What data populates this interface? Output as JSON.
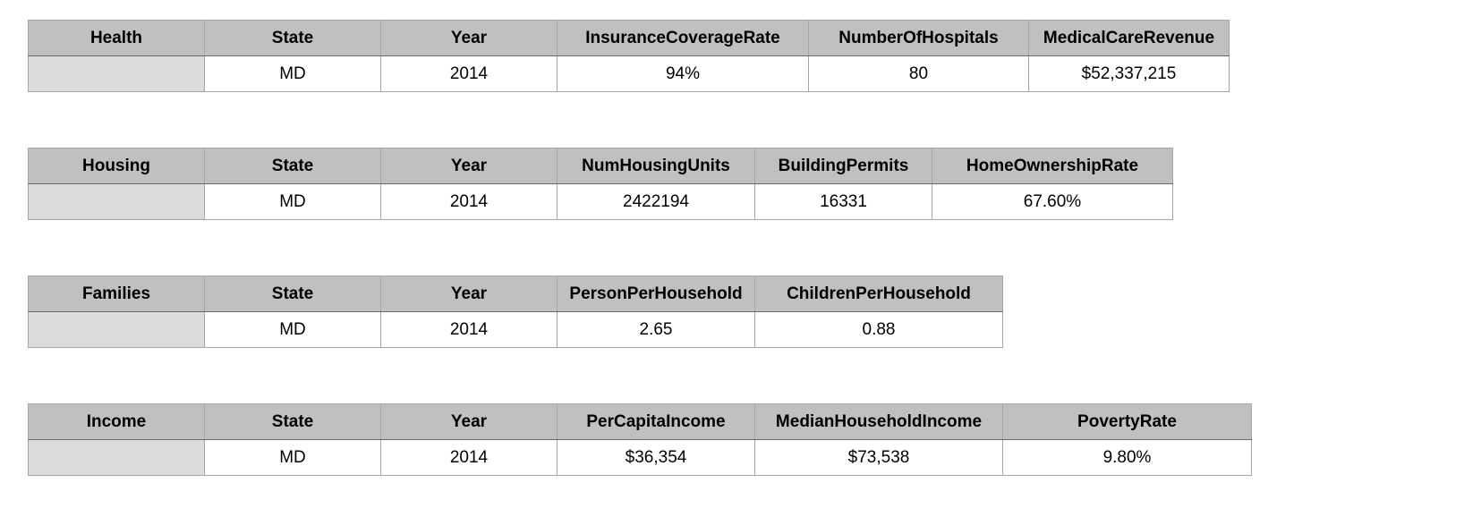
{
  "tables": [
    {
      "id": "health",
      "headers": [
        "Health",
        "State",
        "Year",
        "InsuranceCoverageRate",
        "NumberOfHospitals",
        "MedicalCareRevenue"
      ],
      "row": [
        "",
        "MD",
        "2014",
        "94%",
        "80",
        "$52,337,215"
      ]
    },
    {
      "id": "housing",
      "headers": [
        "Housing",
        "State",
        "Year",
        "NumHousingUnits",
        "BuildingPermits",
        "HomeOwnershipRate"
      ],
      "row": [
        "",
        "MD",
        "2014",
        "2422194",
        "16331",
        "67.60%"
      ]
    },
    {
      "id": "families",
      "headers": [
        "Families",
        "State",
        "Year",
        "PersonPerHousehold",
        "ChildrenPerHousehold"
      ],
      "row": [
        "",
        "MD",
        "2014",
        "2.65",
        "0.88"
      ]
    },
    {
      "id": "income",
      "headers": [
        "Income",
        "State",
        "Year",
        "PerCapitaIncome",
        "MedianHouseholdIncome",
        "PovertyRate"
      ],
      "row": [
        "",
        "MD",
        "2014",
        "$36,354",
        "$73,538",
        "9.80%"
      ]
    }
  ]
}
